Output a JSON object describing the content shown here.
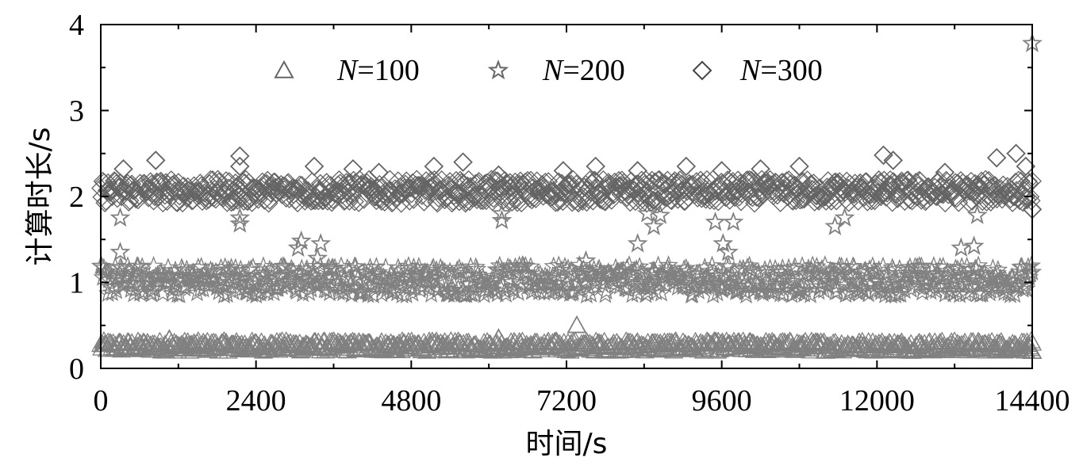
{
  "chart_data": {
    "type": "scatter",
    "title": "",
    "xlabel": "时间/s",
    "ylabel": "计算时长/s",
    "xlim": [
      0,
      14400
    ],
    "ylim": [
      0,
      4
    ],
    "xticks": [
      0,
      2400,
      4800,
      7200,
      9600,
      12000,
      14400
    ],
    "xtick_labels": [
      "0",
      "2400",
      "4800",
      "7200",
      "9600",
      "12000",
      "14400"
    ],
    "yticks": [
      0,
      1,
      2,
      3,
      4
    ],
    "ytick_labels": [
      "0",
      "1",
      "2",
      "3",
      "4"
    ],
    "grid": false,
    "legend_position": "top",
    "series": [
      {
        "name": "N=100",
        "name_var": "N",
        "name_rest": "=100",
        "marker": "triangle",
        "color": "#808080",
        "band": [
          0.2,
          0.32
        ],
        "outliers": [
          [
            7360,
            0.5
          ],
          [
            6150,
            0.35
          ],
          [
            1060,
            0.34
          ],
          [
            14400,
            0.2
          ]
        ]
      },
      {
        "name": "N=200",
        "name_var": "N",
        "name_rest": "=200",
        "marker": "star",
        "color": "#808080",
        "band": [
          0.85,
          1.2
        ],
        "outliers": [
          [
            300,
            1.75
          ],
          [
            300,
            1.35
          ],
          [
            2150,
            1.75
          ],
          [
            2150,
            1.68
          ],
          [
            3050,
            1.4
          ],
          [
            3100,
            1.48
          ],
          [
            3400,
            1.45
          ],
          [
            3350,
            1.28
          ],
          [
            6200,
            1.8
          ],
          [
            6200,
            1.72
          ],
          [
            8450,
            1.8
          ],
          [
            8300,
            1.45
          ],
          [
            8550,
            1.65
          ],
          [
            8650,
            1.78
          ],
          [
            9500,
            1.7
          ],
          [
            9620,
            1.45
          ],
          [
            9780,
            1.7
          ],
          [
            9700,
            1.35
          ],
          [
            11350,
            1.65
          ],
          [
            11500,
            1.75
          ],
          [
            13300,
            1.4
          ],
          [
            13500,
            1.42
          ],
          [
            13550,
            1.78
          ],
          [
            7500,
            1.25
          ],
          [
            14400,
            3.78
          ]
        ]
      },
      {
        "name": "N=300",
        "name_var": "N",
        "name_rest": "=300",
        "marker": "diamond",
        "color": "#646464",
        "band": [
          1.92,
          2.2
        ],
        "outliers": [
          [
            350,
            2.32
          ],
          [
            850,
            2.42
          ],
          [
            2150,
            2.47
          ],
          [
            2150,
            2.35
          ],
          [
            3300,
            2.35
          ],
          [
            3900,
            2.32
          ],
          [
            4300,
            2.28
          ],
          [
            5150,
            2.35
          ],
          [
            5600,
            2.4
          ],
          [
            6150,
            2.25
          ],
          [
            7150,
            2.3
          ],
          [
            7650,
            2.35
          ],
          [
            8300,
            2.3
          ],
          [
            9050,
            2.35
          ],
          [
            9600,
            2.3
          ],
          [
            10200,
            2.32
          ],
          [
            10800,
            2.35
          ],
          [
            12100,
            2.48
          ],
          [
            12250,
            2.42
          ],
          [
            13050,
            2.28
          ],
          [
            13850,
            2.45
          ],
          [
            14150,
            2.5
          ],
          [
            14300,
            2.35
          ],
          [
            14400,
            1.85
          ]
        ]
      }
    ]
  }
}
